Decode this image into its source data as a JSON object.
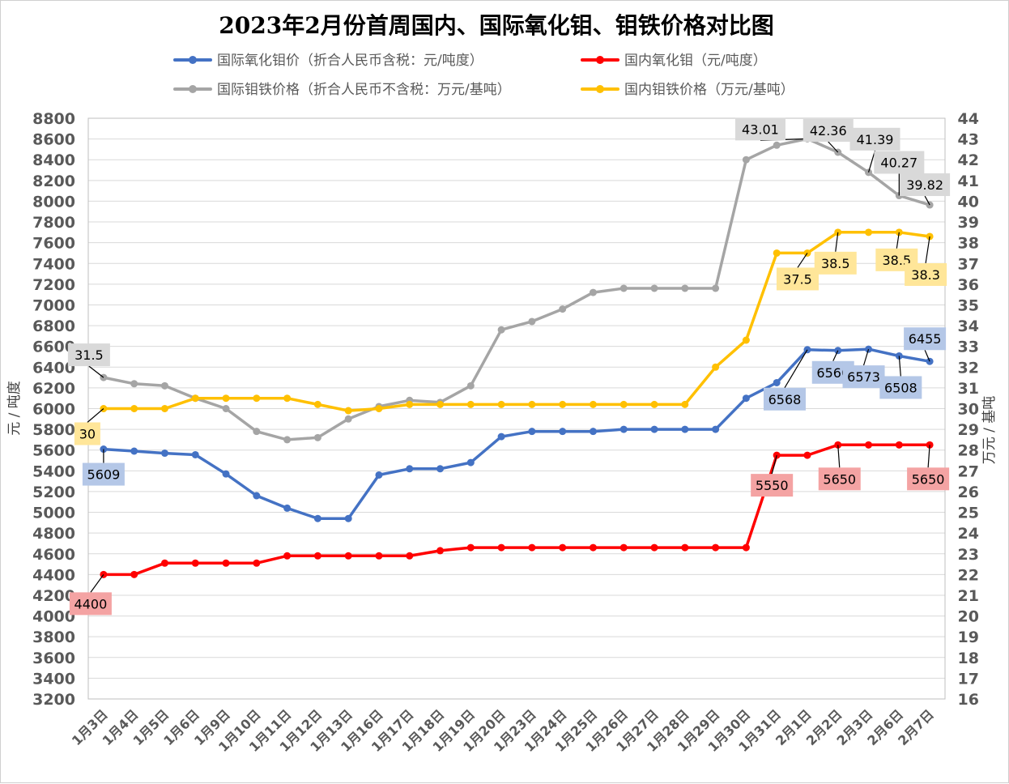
{
  "chart_data": {
    "type": "line",
    "title": "2023年2月份首周国内、国际氧化钼、钼铁价格对比图",
    "ylabel_left": "元 / 吨度",
    "ylabel_right": "万元 / 基吨",
    "ylim_left": [
      3200,
      8800
    ],
    "ytick_step_left": 200,
    "ylim_right": [
      16,
      44
    ],
    "ytick_step_right": 1,
    "grid": true,
    "legend_position": "top",
    "categories": [
      "1月3日",
      "1月4日",
      "1月5日",
      "1月6日",
      "1月9日",
      "1月10日",
      "1月11日",
      "1月12日",
      "1月13日",
      "1月16日",
      "1月17日",
      "1月18日",
      "1月19日",
      "1月20日",
      "1月23日",
      "1月24日",
      "1月25日",
      "1月26日",
      "1月27日",
      "1月28日",
      "1月29日",
      "1月30日",
      "1月31日",
      "2月1日",
      "2月2日",
      "2月3日",
      "2月6日",
      "2月7日"
    ],
    "series": [
      {
        "name": "国际氧化钼价（折合人民币含税：元/吨度）",
        "axis": "left",
        "color": "#4472C4",
        "label_bg": "#B4C7E7",
        "values": [
          5609,
          5590,
          5570,
          5555,
          5370,
          5160,
          5040,
          4940,
          4940,
          5360,
          5420,
          5420,
          5480,
          5730,
          5780,
          5780,
          5780,
          5800,
          5800,
          5800,
          5800,
          6100,
          6250,
          6568,
          6560,
          6573,
          6508,
          6455
        ],
        "labels": [
          {
            "i": 0,
            "text": "5609"
          },
          {
            "i": 23,
            "text": "6568"
          },
          {
            "i": 24,
            "text": "6560"
          },
          {
            "i": 25,
            "text": "6573"
          },
          {
            "i": 26,
            "text": "6508"
          },
          {
            "i": 27,
            "text": "6455"
          }
        ]
      },
      {
        "name": "国内氧化钼（元/吨度）",
        "axis": "left",
        "color": "#FF0000",
        "label_bg": "#F4A3A3",
        "values": [
          4400,
          4400,
          4510,
          4510,
          4510,
          4510,
          4580,
          4580,
          4580,
          4580,
          4580,
          4630,
          4660,
          4660,
          4660,
          4660,
          4660,
          4660,
          4660,
          4660,
          4660,
          4660,
          5550,
          5550,
          5650,
          5650,
          5650,
          5650
        ],
        "labels": [
          {
            "i": 0,
            "text": "4400"
          },
          {
            "i": 22,
            "text": "5550"
          },
          {
            "i": 24,
            "text": "5650"
          },
          {
            "i": 27,
            "text": "5650"
          }
        ]
      },
      {
        "name": "国际钼铁价格（折合人民币不含税：万元/基吨）",
        "axis": "right",
        "color": "#A5A5A5",
        "label_bg": "#D9D9D9",
        "values": [
          31.5,
          31.2,
          31.1,
          30.5,
          30.0,
          28.9,
          28.5,
          28.6,
          29.5,
          30.1,
          30.4,
          30.3,
          31.1,
          33.8,
          34.2,
          34.8,
          35.6,
          35.8,
          35.8,
          35.8,
          35.8,
          42.0,
          42.7,
          43.01,
          42.36,
          41.39,
          40.27,
          39.82
        ],
        "labels": [
          {
            "i": 0,
            "text": "31.5"
          },
          {
            "i": 23,
            "text": "43.01"
          },
          {
            "i": 24,
            "text": "42.36"
          },
          {
            "i": 25,
            "text": "41.39"
          },
          {
            "i": 26,
            "text": "40.27"
          },
          {
            "i": 27,
            "text": "39.82"
          }
        ]
      },
      {
        "name": "国内钼铁价格（万元/基吨）",
        "axis": "right",
        "color": "#FFC000",
        "label_bg": "#FFE699",
        "values": [
          30,
          30,
          30,
          30.5,
          30.5,
          30.5,
          30.5,
          30.2,
          29.9,
          30,
          30.2,
          30.2,
          30.2,
          30.2,
          30.2,
          30.2,
          30.2,
          30.2,
          30.2,
          30.2,
          32,
          33.3,
          37.5,
          37.5,
          38.5,
          38.5,
          38.5,
          38.3
        ],
        "labels": [
          {
            "i": 0,
            "text": "30"
          },
          {
            "i": 23,
            "text": "37.5"
          },
          {
            "i": 24,
            "text": "38.5"
          },
          {
            "i": 26,
            "text": "38.5"
          },
          {
            "i": 27,
            "text": "38.3"
          }
        ]
      }
    ]
  }
}
